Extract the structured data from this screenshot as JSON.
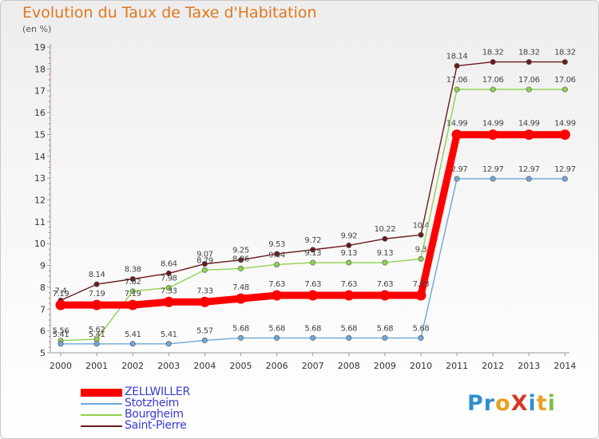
{
  "title": "Evolution du Taux de Taxe d'Habitation",
  "unit_label": "(en %)",
  "brand": {
    "text": "ProXiti",
    "letters": [
      {
        "ch": "P",
        "color": "#2f8fcf"
      },
      {
        "ch": "r",
        "color": "#2f8fcf"
      },
      {
        "ch": "o",
        "color": "#e8a020"
      },
      {
        "ch": "X",
        "color": "#d83a26"
      },
      {
        "ch": "i",
        "color": "#2f8fcf"
      },
      {
        "ch": "t",
        "color": "#e8a020"
      },
      {
        "ch": "i",
        "color": "#7cc24a"
      }
    ]
  },
  "chart_data": {
    "type": "line",
    "x": [
      "2000",
      "2001",
      "2002",
      "2003",
      "2004",
      "2005",
      "2006",
      "2007",
      "2008",
      "2009",
      "2010",
      "2011",
      "2012",
      "2013",
      "2014"
    ],
    "ylim": [
      5,
      19
    ],
    "yticks": [
      5,
      6,
      7,
      8,
      9,
      10,
      11,
      12,
      13,
      14,
      15,
      16,
      17,
      18,
      19
    ],
    "grid": false,
    "legend_position": "bottom-left",
    "series": [
      {
        "name": "Saint-Pierre",
        "color": "#6b1a1a",
        "values": [
          7.4,
          8.14,
          8.38,
          8.64,
          9.07,
          9.25,
          9.53,
          9.72,
          9.92,
          10.22,
          10.4,
          18.14,
          18.32,
          18.32,
          18.32
        ],
        "labels": [
          "7.4",
          "8.14",
          "8.38",
          "8.64",
          "9.07",
          "9.25",
          "9.53",
          "9.72",
          "9.92",
          "10.22",
          "10.4",
          "18.14",
          "18.32",
          "18.32",
          "18.32"
        ]
      },
      {
        "name": "Bourgheim",
        "color": "#8ed24e",
        "values": [
          5.56,
          5.62,
          7.82,
          7.98,
          8.79,
          8.86,
          9.04,
          9.13,
          9.13,
          9.13,
          9.3,
          17.06,
          17.06,
          17.06,
          17.06
        ],
        "labels": [
          "5.56",
          "5.62",
          "7.82",
          "7.98",
          "8.79",
          "8.86",
          "9.04",
          "9.13",
          "9.13",
          "9.13",
          "9.3",
          "17.06",
          "17.06",
          "17.06",
          "17.06"
        ]
      },
      {
        "name": "Stotzheim",
        "color": "#6ea6d6",
        "values": [
          5.41,
          5.41,
          5.41,
          5.41,
          5.57,
          5.68,
          5.68,
          5.68,
          5.68,
          5.68,
          5.68,
          12.97,
          12.97,
          12.97,
          12.97
        ],
        "labels": [
          "5.41",
          "5.41",
          "5.41",
          "5.41",
          "5.57",
          "5.68",
          "5.68",
          "5.68",
          "5.68",
          "5.68",
          "5.68",
          "12.97",
          "12.97",
          "12.97",
          "12.97"
        ]
      },
      {
        "name": "ZELLWILLER",
        "color": "#ff0000",
        "values": [
          7.19,
          7.19,
          7.19,
          7.33,
          7.33,
          7.48,
          7.63,
          7.63,
          7.63,
          7.63,
          7.63,
          14.99,
          14.99,
          14.99,
          14.99
        ],
        "labels": [
          "7.19",
          "7.19",
          "7.19",
          "7.33",
          "7.33",
          "7.48",
          "7.63",
          "7.63",
          "7.63",
          "7.63",
          "7.63",
          "14.99",
          "14.99",
          "14.99",
          "14.99"
        ]
      }
    ]
  },
  "legend": [
    {
      "label": "ZELLWILLER",
      "color": "#ff0000"
    },
    {
      "label": "Stotzheim",
      "color": "#6ea6d6"
    },
    {
      "label": "Bourgheim",
      "color": "#8ed24e"
    },
    {
      "label": "Saint-Pierre",
      "color": "#6b1a1a"
    }
  ]
}
